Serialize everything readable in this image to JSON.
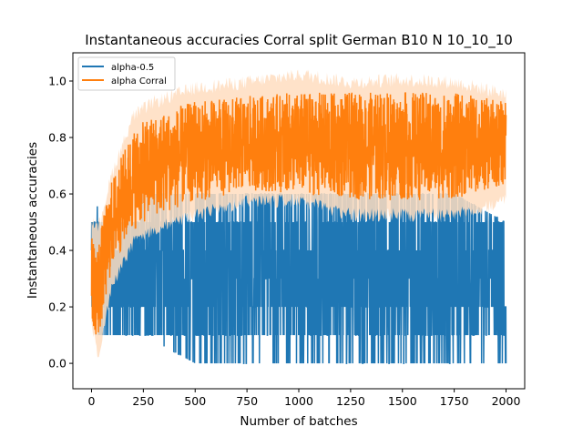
{
  "chart_data": {
    "type": "line",
    "title": "Instantaneous accuracies Corral split German B10 N 10_10_10",
    "xlabel": "Number of batches",
    "ylabel": "Instantaneous accuracies",
    "xlim": [
      -90,
      2090
    ],
    "ylim": [
      -0.09,
      1.1
    ],
    "xticks": [
      0,
      250,
      500,
      750,
      1000,
      1250,
      1500,
      1750,
      2000
    ],
    "yticks": [
      0.0,
      0.2,
      0.4,
      0.6,
      0.8,
      1.0
    ],
    "xtick_labels": [
      "0",
      "250",
      "500",
      "750",
      "1000",
      "1250",
      "1500",
      "1750",
      "2000"
    ],
    "ytick_labels": [
      "0.0",
      "0.2",
      "0.4",
      "0.6",
      "0.8",
      "1.0"
    ],
    "grid": false,
    "legend_position": "top-left",
    "legend": [
      "alpha-0.5",
      "alpha Corral"
    ],
    "series": [
      {
        "name": "alpha-0.5",
        "color": "#1f77b4",
        "x_range": [
          0,
          2000
        ],
        "envelope": [
          {
            "x": 0,
            "low": 0.1,
            "high": 0.5,
            "mean": 0.3
          },
          {
            "x": 50,
            "low": 0.1,
            "high": 0.6,
            "mean": 0.33
          },
          {
            "x": 100,
            "low": 0.1,
            "high": 0.5,
            "mean": 0.33
          },
          {
            "x": 250,
            "low": 0.1,
            "high": 0.6,
            "mean": 0.33
          },
          {
            "x": 500,
            "low": 0.0,
            "high": 0.6,
            "mean": 0.33
          },
          {
            "x": 750,
            "low": 0.0,
            "high": 0.6,
            "mean": 0.33
          },
          {
            "x": 1000,
            "low": 0.0,
            "high": 0.6,
            "mean": 0.33
          },
          {
            "x": 1250,
            "low": 0.0,
            "high": 0.6,
            "mean": 0.33
          },
          {
            "x": 1500,
            "low": 0.0,
            "high": 0.6,
            "mean": 0.33
          },
          {
            "x": 1750,
            "low": 0.0,
            "high": 0.6,
            "mean": 0.33
          },
          {
            "x": 2000,
            "low": 0.0,
            "high": 0.5,
            "mean": 0.33
          }
        ],
        "discrete_levels": [
          0.0,
          0.1,
          0.2,
          0.3,
          0.4,
          0.5,
          0.6
        ]
      },
      {
        "name": "alpha Corral",
        "color": "#ff7f0e",
        "band_color": "#ffddbf",
        "x_range": [
          0,
          2000
        ],
        "envelope": [
          {
            "x": 0,
            "low": 0.15,
            "high": 0.48,
            "mean": 0.3
          },
          {
            "x": 30,
            "low": 0.05,
            "high": 0.45,
            "mean": 0.25
          },
          {
            "x": 100,
            "low": 0.3,
            "high": 0.65,
            "mean": 0.5
          },
          {
            "x": 200,
            "low": 0.45,
            "high": 0.85,
            "mean": 0.65
          },
          {
            "x": 300,
            "low": 0.5,
            "high": 0.9,
            "mean": 0.7
          },
          {
            "x": 500,
            "low": 0.55,
            "high": 0.95,
            "mean": 0.75
          },
          {
            "x": 750,
            "low": 0.6,
            "high": 0.97,
            "mean": 0.78
          },
          {
            "x": 1000,
            "low": 0.6,
            "high": 1.0,
            "mean": 0.78
          },
          {
            "x": 1250,
            "low": 0.55,
            "high": 0.97,
            "mean": 0.77
          },
          {
            "x": 1500,
            "low": 0.55,
            "high": 0.98,
            "mean": 0.77
          },
          {
            "x": 1750,
            "low": 0.55,
            "high": 0.97,
            "mean": 0.77
          },
          {
            "x": 2000,
            "low": 0.6,
            "high": 0.93,
            "mean": 0.78
          }
        ]
      }
    ]
  }
}
